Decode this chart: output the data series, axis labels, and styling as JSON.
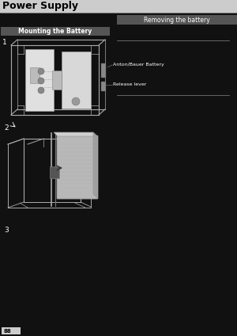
{
  "title": "Power Supply",
  "title_fontsize": 9,
  "section_left": "Mounting the Battery",
  "section_right": "Removing the battery",
  "bg_color": "#111111",
  "header_bg": "#dddddd",
  "header_text_bg": "#cccccc",
  "section_left_bg": "#555555",
  "section_right_bg": "#444444",
  "page_number": "88",
  "diag1_step": "1",
  "diag2_step": "2",
  "diag3_step": "3",
  "label1": "Anton/Bauer Battery",
  "label2": "Release lever",
  "line_color": "#aaaaaa",
  "bracket_color": "#888888",
  "white_color": "#ffffff",
  "light_gray": "#cccccc",
  "mid_gray": "#999999",
  "dark_gray": "#444444"
}
